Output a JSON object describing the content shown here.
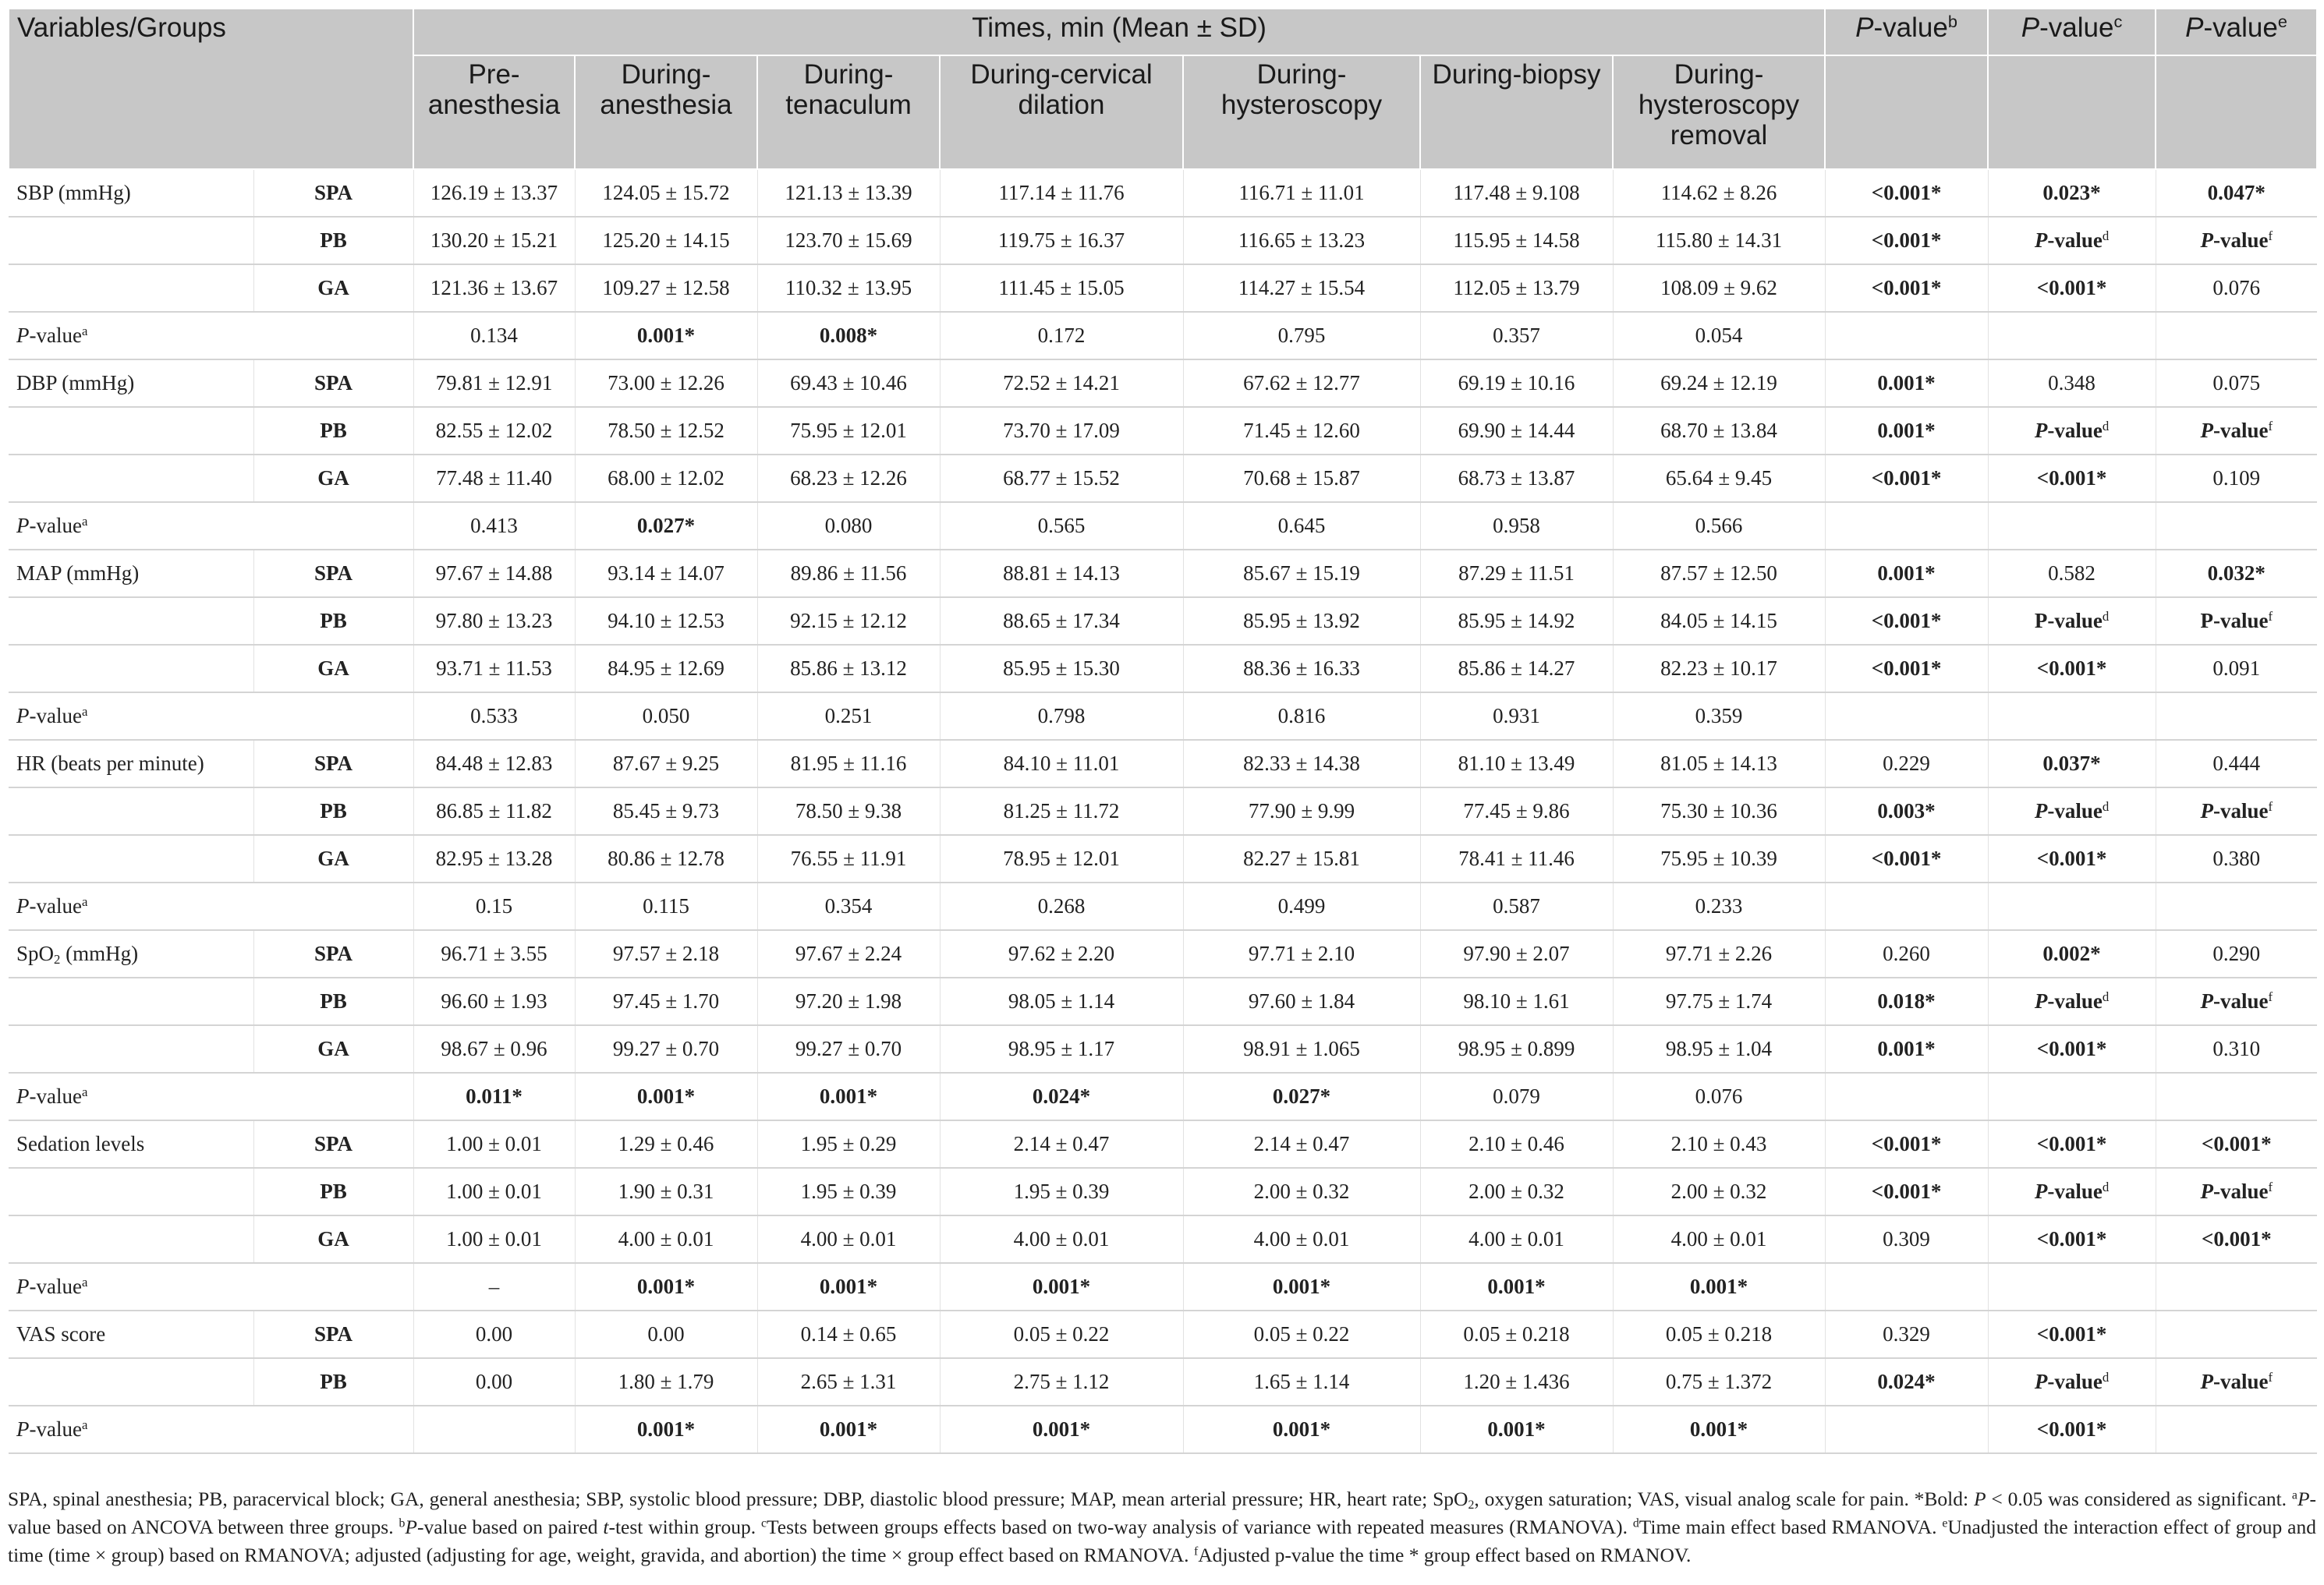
{
  "table": {
    "header": {
      "variables": "Variables/Groups",
      "times": "Times, min (Mean ± SD)",
      "pvalues": [
        [
          {
            "text": "P",
            "style": "i"
          },
          "-value",
          {
            "text": "b",
            "style": "sup"
          }
        ],
        [
          {
            "text": "P",
            "style": "i"
          },
          "-value",
          {
            "text": "c",
            "style": "sup"
          }
        ],
        [
          {
            "text": "P",
            "style": "i"
          },
          "-value",
          {
            "text": "e",
            "style": "sup"
          }
        ]
      ],
      "time_points": [
        "Pre-anesthesia",
        "During-anesthesia",
        "During-tenaculum",
        "During-cervical dilation",
        "During-hysteroscopy",
        "During-biopsy",
        "During-hysteroscopy removal"
      ]
    },
    "rows": [
      {
        "label": "SBP (mmHg)",
        "group": "SPA",
        "cells": [
          "126.19 ± 13.37",
          "124.05 ± 15.72",
          "121.13 ± 13.39",
          "117.14 ± 11.76",
          "116.71 ± 11.01",
          "117.48 ± 9.108",
          "114.62 ± 8.26"
        ],
        "p": [
          {
            "text": "<0.001*",
            "style": "b"
          },
          {
            "text": "0.023*",
            "style": "b"
          },
          {
            "text": "0.047*",
            "style": "b"
          }
        ]
      },
      {
        "group": "PB",
        "cells": [
          "130.20 ± 15.21",
          "125.20 ± 14.15",
          "123.70 ± 15.69",
          "119.75 ± 16.37",
          "116.65 ± 13.23",
          "115.95 ± 14.58",
          "115.80 ± 14.31"
        ],
        "p": [
          {
            "text": "<0.001*",
            "style": "b"
          },
          [
            {
              "text": "P",
              "style": "bi"
            },
            {
              "text": "-value",
              "style": "b"
            },
            {
              "text": "d",
              "style": "sup"
            }
          ],
          [
            {
              "text": "P",
              "style": "bi"
            },
            {
              "text": "-value",
              "style": "b"
            },
            {
              "text": "f",
              "style": "sup"
            }
          ]
        ]
      },
      {
        "group": "GA",
        "cells": [
          "121.36 ± 13.67",
          "109.27 ± 12.58",
          "110.32 ± 13.95",
          "111.45 ± 15.05",
          "114.27 ± 15.54",
          "112.05 ± 13.79",
          "108.09 ± 9.62"
        ],
        "p": [
          {
            "text": "<0.001*",
            "style": "b"
          },
          {
            "text": "<0.001*",
            "style": "b"
          },
          "0.076"
        ]
      },
      {
        "label": [
          {
            "text": "P",
            "style": "i"
          },
          "-value",
          {
            "text": "a",
            "style": "sup"
          }
        ],
        "cells": [
          "0.134",
          {
            "text": "0.001*",
            "style": "b"
          },
          {
            "text": "0.008*",
            "style": "b"
          },
          "0.172",
          "0.795",
          "0.357",
          "0.054"
        ]
      },
      {
        "label": "DBP (mmHg)",
        "group": "SPA",
        "cells": [
          "79.81 ± 12.91",
          "73.00 ± 12.26",
          "69.43 ± 10.46",
          "72.52 ± 14.21",
          "67.62 ± 12.77",
          "69.19 ± 10.16",
          "69.24 ± 12.19"
        ],
        "p": [
          {
            "text": "0.001*",
            "style": "b"
          },
          "0.348",
          "0.075"
        ]
      },
      {
        "group": "PB",
        "cells": [
          "82.55 ± 12.02",
          "78.50 ± 12.52",
          "75.95 ± 12.01",
          "73.70 ± 17.09",
          "71.45 ± 12.60",
          "69.90 ± 14.44",
          "68.70 ± 13.84"
        ],
        "p": [
          {
            "text": "0.001*",
            "style": "b"
          },
          [
            {
              "text": "P",
              "style": "bi"
            },
            {
              "text": "-value",
              "style": "b"
            },
            {
              "text": "d",
              "style": "sup"
            }
          ],
          [
            {
              "text": "P",
              "style": "bi"
            },
            {
              "text": "-value",
              "style": "b"
            },
            {
              "text": "f",
              "style": "sup"
            }
          ]
        ]
      },
      {
        "group": "GA",
        "cells": [
          "77.48 ± 11.40",
          "68.00 ± 12.02",
          "68.23 ± 12.26",
          "68.77 ± 15.52",
          "70.68 ± 15.87",
          "68.73 ± 13.87",
          "65.64 ± 9.45"
        ],
        "p": [
          {
            "text": "<0.001*",
            "style": "b"
          },
          {
            "text": "<0.001*",
            "style": "b"
          },
          "0.109"
        ]
      },
      {
        "label": [
          {
            "text": "P",
            "style": "i"
          },
          "-value",
          {
            "text": "a",
            "style": "sup"
          }
        ],
        "cells": [
          "0.413",
          {
            "text": "0.027*",
            "style": "b"
          },
          "0.080",
          "0.565",
          "0.645",
          "0.958",
          "0.566"
        ]
      },
      {
        "label": "MAP (mmHg)",
        "group": "SPA",
        "cells": [
          "97.67 ± 14.88",
          "93.14 ± 14.07",
          "89.86 ± 11.56",
          "88.81 ± 14.13",
          "85.67 ± 15.19",
          "87.29 ± 11.51",
          "87.57 ± 12.50"
        ],
        "p": [
          {
            "text": "0.001*",
            "style": "b"
          },
          "0.582",
          {
            "text": "0.032*",
            "style": "b"
          }
        ]
      },
      {
        "group": "PB",
        "cells": [
          "97.80 ± 13.23",
          "94.10 ± 12.53",
          "92.15 ± 12.12",
          "88.65 ± 17.34",
          "85.95 ± 13.92",
          "85.95 ± 14.92",
          "84.05 ± 14.15"
        ],
        "p": [
          {
            "text": "<0.001*",
            "style": "b"
          },
          [
            {
              "text": "P-value",
              "style": "b"
            },
            {
              "text": "d",
              "style": "sup"
            }
          ],
          [
            {
              "text": "P-value",
              "style": "b"
            },
            {
              "text": "f",
              "style": "sup"
            }
          ]
        ]
      },
      {
        "group": "GA",
        "cells": [
          "93.71 ± 11.53",
          "84.95 ± 12.69",
          "85.86 ± 13.12",
          "85.95 ± 15.30",
          "88.36 ± 16.33",
          "85.86 ± 14.27",
          "82.23 ± 10.17"
        ],
        "p": [
          {
            "text": "<0.001*",
            "style": "b"
          },
          {
            "text": "<0.001*",
            "style": "b"
          },
          "0.091"
        ]
      },
      {
        "label": [
          {
            "text": "P",
            "style": "i"
          },
          "-value",
          {
            "text": "a",
            "style": "sup"
          }
        ],
        "cells": [
          "0.533",
          "0.050",
          "0.251",
          "0.798",
          "0.816",
          "0.931",
          "0.359"
        ]
      },
      {
        "label": "HR (beats per minute)",
        "group": "SPA",
        "cells": [
          "84.48 ± 12.83",
          "87.67 ± 9.25",
          "81.95 ± 11.16",
          "84.10 ± 11.01",
          "82.33 ± 14.38",
          "81.10 ± 13.49",
          "81.05 ± 14.13"
        ],
        "p": [
          "0.229",
          {
            "text": "0.037*",
            "style": "b"
          },
          "0.444"
        ]
      },
      {
        "group": "PB",
        "cells": [
          "86.85 ± 11.82",
          "85.45 ± 9.73",
          "78.50 ± 9.38",
          "81.25 ± 11.72",
          "77.90 ± 9.99",
          "77.45 ± 9.86",
          "75.30 ± 10.36"
        ],
        "p": [
          {
            "text": "0.003*",
            "style": "b"
          },
          [
            {
              "text": "P",
              "style": "bi"
            },
            {
              "text": "-value",
              "style": "b"
            },
            {
              "text": "d",
              "style": "sup"
            }
          ],
          [
            {
              "text": "P",
              "style": "bi"
            },
            {
              "text": "-value",
              "style": "b"
            },
            {
              "text": "f",
              "style": "sup"
            }
          ]
        ]
      },
      {
        "group": "GA",
        "cells": [
          "82.95 ± 13.28",
          "80.86 ± 12.78",
          "76.55 ± 11.91",
          "78.95 ± 12.01",
          "82.27 ± 15.81",
          "78.41 ± 11.46",
          "75.95 ± 10.39"
        ],
        "p": [
          {
            "text": "<0.001*",
            "style": "b"
          },
          {
            "text": "<0.001*",
            "style": "b"
          },
          "0.380"
        ]
      },
      {
        "label": [
          {
            "text": "P",
            "style": "i"
          },
          "-value",
          {
            "text": "a",
            "style": "sup"
          }
        ],
        "cells": [
          "0.15",
          "0.115",
          "0.354",
          "0.268",
          "0.499",
          "0.587",
          "0.233"
        ]
      },
      {
        "label": [
          "SpO",
          {
            "text": "2",
            "style": "sub"
          },
          " (mmHg)"
        ],
        "group": "SPA",
        "cells": [
          "96.71 ± 3.55",
          "97.57 ± 2.18",
          "97.67 ± 2.24",
          "97.62 ± 2.20",
          "97.71 ± 2.10",
          "97.90 ± 2.07",
          "97.71 ± 2.26"
        ],
        "p": [
          "0.260",
          {
            "text": "0.002*",
            "style": "b"
          },
          "0.290"
        ]
      },
      {
        "group": "PB",
        "cells": [
          "96.60 ± 1.93",
          "97.45 ± 1.70",
          "97.20 ± 1.98",
          "98.05 ± 1.14",
          "97.60 ± 1.84",
          "98.10 ± 1.61",
          "97.75 ± 1.74"
        ],
        "p": [
          {
            "text": "0.018*",
            "style": "b"
          },
          [
            {
              "text": "P",
              "style": "bi"
            },
            {
              "text": "-value",
              "style": "b"
            },
            {
              "text": "d",
              "style": "sup"
            }
          ],
          [
            {
              "text": "P",
              "style": "bi"
            },
            {
              "text": "-value",
              "style": "b"
            },
            {
              "text": "f",
              "style": "sup"
            }
          ]
        ]
      },
      {
        "group": "GA",
        "cells": [
          "98.67 ± 0.96",
          "99.27 ± 0.70",
          "99.27 ± 0.70",
          "98.95 ± 1.17",
          "98.91 ± 1.065",
          "98.95 ± 0.899",
          "98.95 ± 1.04"
        ],
        "p": [
          {
            "text": "0.001*",
            "style": "b"
          },
          {
            "text": "<0.001*",
            "style": "b"
          },
          "0.310"
        ]
      },
      {
        "label": [
          {
            "text": "P",
            "style": "i"
          },
          "-value",
          {
            "text": "a",
            "style": "sup"
          }
        ],
        "cells": [
          {
            "text": "0.011*",
            "style": "b"
          },
          {
            "text": "0.001*",
            "style": "b"
          },
          {
            "text": "0.001*",
            "style": "b"
          },
          {
            "text": "0.024*",
            "style": "b"
          },
          {
            "text": "0.027*",
            "style": "b"
          },
          "0.079",
          "0.076"
        ]
      },
      {
        "label": "Sedation levels",
        "group": "SPA",
        "cells": [
          "1.00 ± 0.01",
          "1.29 ± 0.46",
          "1.95 ± 0.29",
          "2.14 ± 0.47",
          "2.14 ± 0.47",
          "2.10 ± 0.46",
          "2.10 ± 0.43"
        ],
        "p": [
          {
            "text": "<0.001*",
            "style": "b"
          },
          {
            "text": "<0.001*",
            "style": "b"
          },
          {
            "text": "<0.001*",
            "style": "b"
          }
        ]
      },
      {
        "group": "PB",
        "cells": [
          "1.00 ± 0.01",
          "1.90 ± 0.31",
          "1.95 ± 0.39",
          "1.95 ± 0.39",
          "2.00 ± 0.32",
          "2.00 ± 0.32",
          "2.00 ± 0.32"
        ],
        "p": [
          {
            "text": "<0.001*",
            "style": "b"
          },
          [
            {
              "text": "P",
              "style": "bi"
            },
            {
              "text": "-value",
              "style": "b"
            },
            {
              "text": "d",
              "style": "sup"
            }
          ],
          [
            {
              "text": "P",
              "style": "bi"
            },
            {
              "text": "-value",
              "style": "b"
            },
            {
              "text": "f",
              "style": "sup"
            }
          ]
        ]
      },
      {
        "group": "GA",
        "cells": [
          "1.00 ± 0.01",
          "4.00 ± 0.01",
          "4.00 ± 0.01",
          "4.00 ± 0.01",
          "4.00 ± 0.01",
          "4.00 ± 0.01",
          "4.00 ± 0.01"
        ],
        "p": [
          "0.309",
          {
            "text": "<0.001*",
            "style": "b"
          },
          {
            "text": "<0.001*",
            "style": "b"
          }
        ]
      },
      {
        "label": [
          {
            "text": "P",
            "style": "i"
          },
          "-value",
          {
            "text": "a",
            "style": "sup"
          }
        ],
        "cells": [
          "–",
          {
            "text": "0.001*",
            "style": "b"
          },
          {
            "text": "0.001*",
            "style": "b"
          },
          {
            "text": "0.001*",
            "style": "b"
          },
          {
            "text": "0.001*",
            "style": "b"
          },
          {
            "text": "0.001*",
            "style": "b"
          },
          {
            "text": "0.001*",
            "style": "b"
          }
        ]
      },
      {
        "label": "VAS score",
        "group": "SPA",
        "cells": [
          "0.00",
          "0.00",
          "0.14 ± 0.65",
          "0.05 ± 0.22",
          "0.05 ± 0.22",
          "0.05 ± 0.218",
          "0.05 ± 0.218"
        ],
        "p": [
          "0.329",
          {
            "text": "<0.001*",
            "style": "b"
          },
          null
        ]
      },
      {
        "group": "PB",
        "cells": [
          "0.00",
          "1.80 ± 1.79",
          "2.65 ± 1.31",
          "2.75 ± 1.12",
          "1.65 ± 1.14",
          "1.20 ± 1.436",
          "0.75 ± 1.372"
        ],
        "p": [
          {
            "text": "0.024*",
            "style": "b"
          },
          [
            {
              "text": "P",
              "style": "bi"
            },
            {
              "text": "-value",
              "style": "b"
            },
            {
              "text": "d",
              "style": "sup"
            }
          ],
          [
            {
              "text": "P",
              "style": "bi"
            },
            {
              "text": "-value",
              "style": "b"
            },
            {
              "text": "f",
              "style": "sup"
            }
          ]
        ]
      },
      {
        "label": [
          {
            "text": "P",
            "style": "i"
          },
          "-value",
          {
            "text": "a",
            "style": "sup"
          }
        ],
        "cells": [
          null,
          {
            "text": "0.001*",
            "style": "b"
          },
          {
            "text": "0.001*",
            "style": "b"
          },
          {
            "text": "0.001*",
            "style": "b"
          },
          {
            "text": "0.001*",
            "style": "b"
          },
          {
            "text": "0.001*",
            "style": "b"
          },
          {
            "text": "0.001*",
            "style": "b"
          }
        ],
        "p": [
          null,
          {
            "text": "<0.001*",
            "style": "b"
          },
          null
        ]
      }
    ]
  },
  "footnote": [
    "SPA, spinal anesthesia; PB, paracervical block; GA, general anesthesia; SBP, systolic blood pressure; DBP, diastolic blood pressure; MAP, mean arterial pressure; HR, heart rate; SpO",
    {
      "text": "2",
      "style": "sub"
    },
    ", oxygen saturation; VAS, visual analog scale for pain. *Bold: ",
    {
      "text": "P",
      "style": "i"
    },
    " < 0.05 was considered as significant. ",
    {
      "text": "a",
      "style": "sup"
    },
    {
      "text": "P",
      "style": "i"
    },
    "-value based on ANCOVA between three groups. ",
    {
      "text": "b",
      "style": "sup"
    },
    {
      "text": "P",
      "style": "i"
    },
    "-value based on paired ",
    {
      "text": "t",
      "style": "i"
    },
    "-test within group. ",
    {
      "text": "c",
      "style": "sup"
    },
    "Tests between groups effects based on two-way analysis of variance with repeated measures (RMANOVA). ",
    {
      "text": "d",
      "style": "sup"
    },
    "Time main effect based RMANOVA. ",
    {
      "text": "e",
      "style": "sup"
    },
    "Unadjusted the interaction effect of group and time (time × group) based on RMANOVA; adjusted (adjusting for age, weight, gravida, and abortion) the time × group effect based on RMANOVA. ",
    {
      "text": "f",
      "style": "sup"
    },
    "Adjusted p-value the time * group effect based on RMANOV."
  ]
}
